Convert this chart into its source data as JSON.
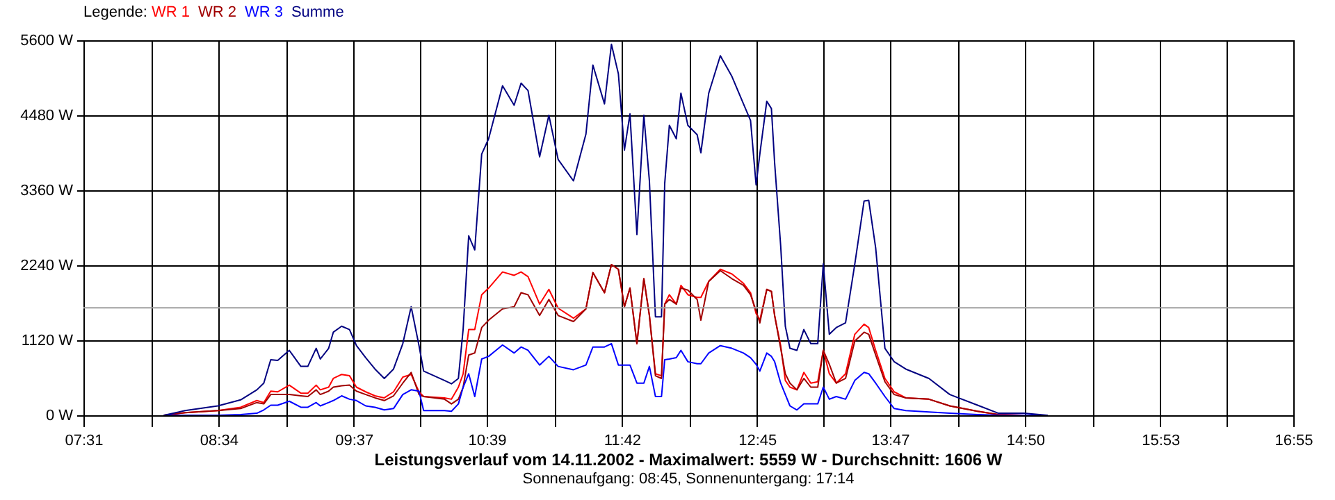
{
  "chart_data": {
    "type": "line",
    "title": "Leistungsverlauf vom 14.11.2002 - Maximalwert: 5559 W - Durchschnitt: 1606 W",
    "subtitle": "Sonnenaufgang: 08:45, Sonnenuntergang: 17:14",
    "legend_title": "Legende:",
    "legend": "top left",
    "grid": true,
    "x": [
      8.143,
      8.306,
      8.561,
      8.738,
      8.864,
      8.918,
      8.972,
      9.026,
      9.116,
      9.206,
      9.26,
      9.325,
      9.357,
      9.422,
      9.458,
      9.523,
      9.584,
      9.638,
      9.71,
      9.782,
      9.854,
      9.926,
      9.998,
      10.063,
      10.124,
      10.16,
      10.322,
      10.376,
      10.43,
      10.467,
      10.51,
      10.557,
      10.611,
      10.665,
      10.773,
      10.863,
      10.917,
      10.971,
      11.061,
      11.133,
      11.205,
      11.324,
      11.421,
      11.475,
      11.565,
      11.619,
      11.673,
      11.72,
      11.763,
      11.817,
      11.871,
      11.914,
      11.961,
      12.008,
      12.033,
      12.069,
      12.123,
      12.159,
      12.213,
      12.285,
      12.314,
      12.375,
      12.465,
      12.555,
      12.645,
      12.7,
      12.743,
      12.772,
      12.826,
      12.862,
      12.887,
      12.934,
      12.97,
      13.006,
      13.06,
      13.114,
      13.168,
      13.222,
      13.265,
      13.312,
      13.366,
      13.438,
      13.51,
      13.582,
      13.618,
      13.672,
      13.744,
      13.816,
      13.906,
      14.086,
      14.248,
      14.464,
      14.626,
      14.825,
      15.005
    ],
    "series": [
      {
        "name": "WR 1",
        "color": "#ff0000",
        "values": [
          0,
          40,
          70,
          120,
          220,
          190,
          360,
          350,
          450,
          330,
          330,
          450,
          380,
          420,
          550,
          610,
          590,
          420,
          350,
          290,
          260,
          350,
          570,
          610,
          350,
          280,
          260,
          240,
          420,
          620,
          1280,
          1280,
          1800,
          1900,
          2140,
          2090,
          2140,
          2070,
          1660,
          1880,
          1600,
          1450,
          1590,
          2130,
          1830,
          2250,
          2180,
          1620,
          1900,
          1070,
          2040,
          1490,
          620,
          590,
          1660,
          1800,
          1660,
          1940,
          1800,
          1760,
          1760,
          2000,
          2180,
          2110,
          1970,
          1830,
          1520,
          1420,
          1880,
          1850,
          1490,
          1040,
          520,
          420,
          380,
          640,
          480,
          500,
          970,
          620,
          480,
          620,
          1210,
          1360,
          1310,
          970,
          550,
          350,
          260,
          240,
          140,
          60,
          10,
          0,
          0
        ]
      },
      {
        "name": "WR 2",
        "color": "#a00000",
        "values": [
          0,
          40,
          70,
          100,
          190,
          170,
          310,
          310,
          310,
          290,
          280,
          380,
          310,
          360,
          420,
          440,
          450,
          360,
          310,
          260,
          220,
          290,
          480,
          640,
          310,
          280,
          240,
          170,
          240,
          420,
          900,
          930,
          1310,
          1420,
          1590,
          1620,
          1830,
          1800,
          1490,
          1730,
          1490,
          1400,
          1590,
          2130,
          1830,
          2250,
          2180,
          1620,
          1900,
          1070,
          2040,
          1490,
          590,
          550,
          1660,
          1730,
          1660,
          1900,
          1870,
          1730,
          1420,
          2000,
          2160,
          2040,
          1940,
          1800,
          1560,
          1380,
          1880,
          1850,
          1490,
          1000,
          620,
          480,
          380,
          550,
          420,
          420,
          970,
          760,
          480,
          550,
          1110,
          1240,
          1210,
          900,
          500,
          310,
          260,
          240,
          140,
          60,
          10,
          0,
          0
        ]
      },
      {
        "name": "WR 3",
        "color": "#0000ff",
        "values": [
          0,
          0,
          0,
          10,
          30,
          80,
          150,
          150,
          210,
          120,
          120,
          190,
          140,
          190,
          220,
          290,
          240,
          220,
          140,
          120,
          80,
          100,
          310,
          380,
          360,
          70,
          70,
          60,
          170,
          420,
          620,
          280,
          840,
          880,
          1050,
          930,
          1020,
          970,
          750,
          880,
          730,
          680,
          750,
          1020,
          1020,
          1070,
          750,
          750,
          750,
          480,
          480,
          730,
          280,
          280,
          830,
          840,
          860,
          970,
          800,
          770,
          770,
          930,
          1040,
          1000,
          930,
          860,
          760,
          660,
          930,
          880,
          800,
          480,
          310,
          140,
          80,
          170,
          170,
          170,
          420,
          240,
          280,
          240,
          520,
          640,
          620,
          480,
          280,
          100,
          70,
          50,
          30,
          10,
          0,
          0,
          0
        ]
      },
      {
        "name": "Summe",
        "color": "#000080",
        "values": [
          0,
          70,
          140,
          230,
          380,
          480,
          830,
          820,
          970,
          730,
          730,
          1000,
          840,
          1000,
          1240,
          1330,
          1280,
          1040,
          860,
          690,
          550,
          690,
          1070,
          1620,
          1040,
          660,
          520,
          470,
          550,
          1290,
          2680,
          2470,
          3900,
          4130,
          4920,
          4630,
          4960,
          4850,
          3860,
          4480,
          3820,
          3500,
          4200,
          5230,
          4650,
          5540,
          5100,
          3960,
          4500,
          2700,
          4480,
          3500,
          1470,
          1470,
          3460,
          4330,
          4130,
          4810,
          4330,
          4190,
          3920,
          4810,
          5370,
          5060,
          4650,
          4400,
          3440,
          3900,
          4690,
          4580,
          3770,
          2530,
          1330,
          1000,
          970,
          1280,
          1070,
          1070,
          2260,
          1210,
          1310,
          1380,
          2260,
          3200,
          3210,
          2500,
          1000,
          800,
          690,
          550,
          310,
          150,
          30,
          30,
          0
        ]
      }
    ],
    "xlim": [
      7.5167,
      16.9167
    ],
    "xticks": [
      {
        "value": 7.5167,
        "label": "07:31"
      },
      {
        "value": 8.0417,
        "label": null
      },
      {
        "value": 8.5667,
        "label": "08:34"
      },
      {
        "value": 9.0917,
        "label": null
      },
      {
        "value": 9.6167,
        "label": "09:37"
      },
      {
        "value": 10.1333,
        "label": null
      },
      {
        "value": 10.65,
        "label": "10:39"
      },
      {
        "value": 11.175,
        "label": null
      },
      {
        "value": 11.7,
        "label": "11:42"
      },
      {
        "value": 12.225,
        "label": null
      },
      {
        "value": 12.75,
        "label": "12:45"
      },
      {
        "value": 13.2667,
        "label": null
      },
      {
        "value": 13.7833,
        "label": "13:47"
      },
      {
        "value": 14.3083,
        "label": null
      },
      {
        "value": 14.8333,
        "label": "14:50"
      },
      {
        "value": 15.3583,
        "label": null
      },
      {
        "value": 15.8833,
        "label": "15:53"
      },
      {
        "value": 16.4,
        "label": null
      },
      {
        "value": 16.9167,
        "label": "16:55"
      }
    ],
    "ylim": [
      0,
      5600
    ],
    "yticks": [
      {
        "value": 0,
        "label": "0 W"
      },
      {
        "value": 1120,
        "label": "1120 W"
      },
      {
        "value": 2240,
        "label": "2240 W"
      },
      {
        "value": 3360,
        "label": "3360 W"
      },
      {
        "value": 4480,
        "label": "4480 W"
      },
      {
        "value": 5600,
        "label": "5600 W"
      }
    ],
    "ref_lines": [
      {
        "axis": "y",
        "value": 1606,
        "color": "#a0a0a0"
      }
    ]
  }
}
